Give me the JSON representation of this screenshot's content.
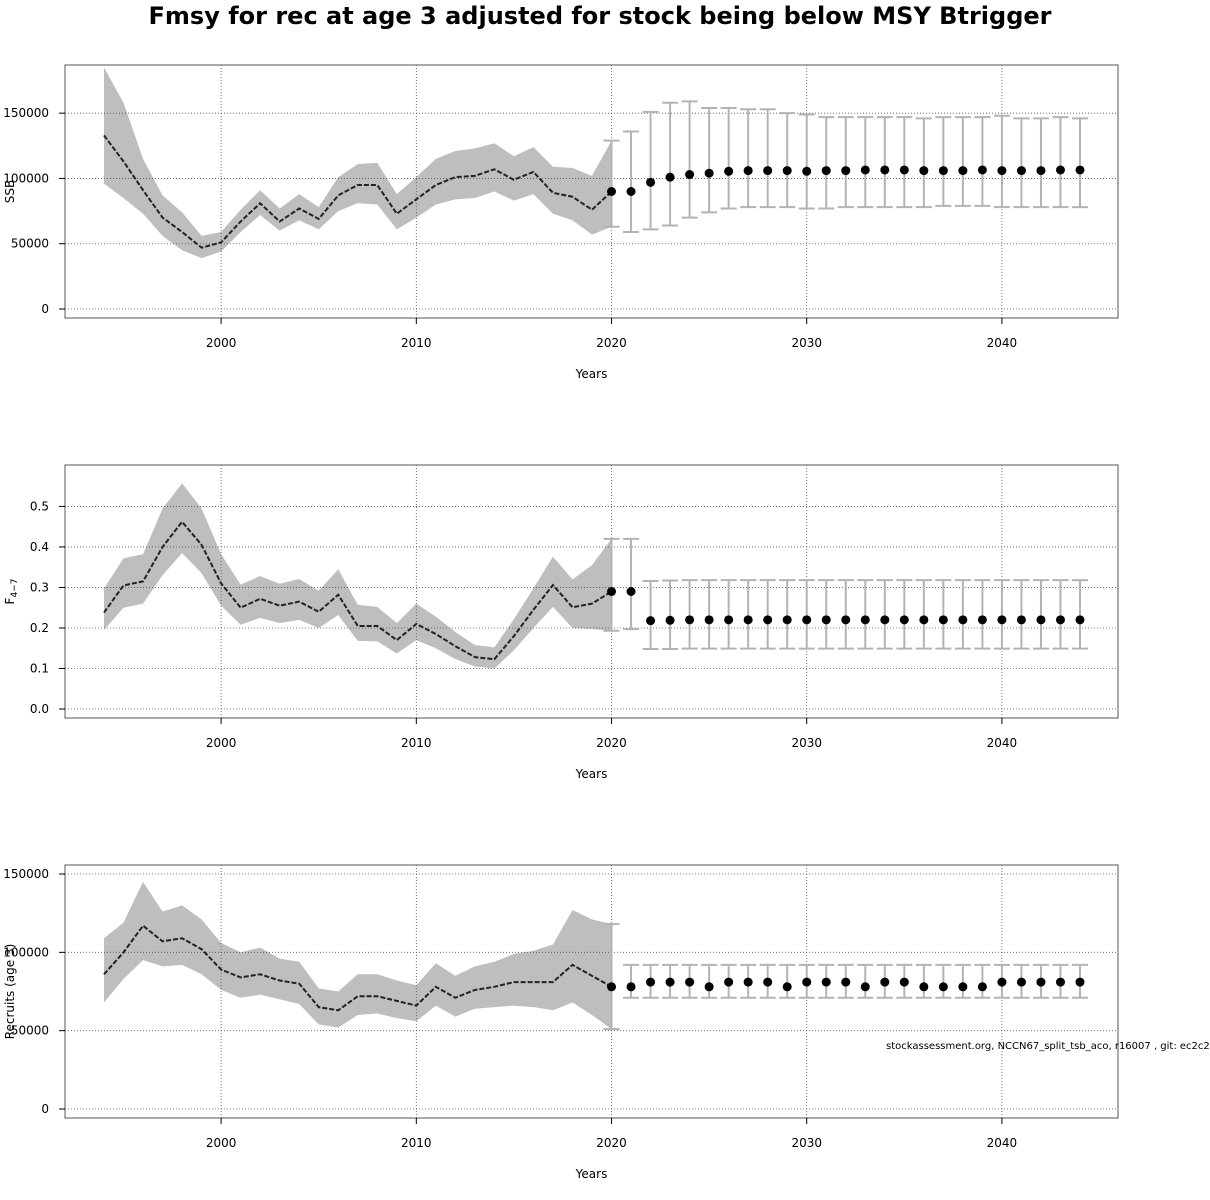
{
  "title": "Fmsy for rec at age 3 adjusted for stock being below MSY Btrigger",
  "footer": "stockassessment.org, NCCN67_split_tsb_aco, r16007 , git: ec2c2",
  "colors": {
    "band": "#bebebe",
    "errorbar": "#b3b3b3",
    "line": "#222222",
    "point": "#000000",
    "grid": "#555555"
  },
  "chart_data": [
    {
      "type": "line",
      "xlabel": "Years",
      "ylabel": "SSB",
      "xlim": [
        1994,
        2044
      ],
      "ylim": [
        0,
        180000
      ],
      "xticks": [
        "2000",
        "2010",
        "2020",
        "2030",
        "2040"
      ],
      "yticks": [
        "0",
        "50000",
        "100000",
        "150000"
      ],
      "historical": {
        "years": [
          1994,
          1995,
          1996,
          1997,
          1998,
          1999,
          2000,
          2001,
          2002,
          2003,
          2004,
          2005,
          2006,
          2007,
          2008,
          2009,
          2010,
          2011,
          2012,
          2013,
          2014,
          2015,
          2016,
          2017,
          2018,
          2019,
          2020
        ],
        "estimate": [
          133000,
          113000,
          91000,
          70000,
          59000,
          47000,
          51000,
          67000,
          81000,
          67000,
          77000,
          69000,
          87000,
          95000,
          95000,
          73000,
          84000,
          95000,
          101000,
          102000,
          107000,
          99000,
          105000,
          89000,
          86000,
          76000,
          90000
        ],
        "lower": [
          96000,
          85000,
          73000,
          56000,
          45000,
          39000,
          44000,
          59000,
          72000,
          60000,
          68000,
          61000,
          75000,
          81000,
          80000,
          61000,
          70000,
          80000,
          84000,
          85000,
          90000,
          83000,
          88000,
          73000,
          68000,
          57000,
          63000
        ],
        "upper": [
          185000,
          158000,
          115000,
          87000,
          74000,
          56000,
          59000,
          76000,
          91000,
          77000,
          88000,
          78000,
          101000,
          111000,
          112000,
          88000,
          101000,
          115000,
          121000,
          123000,
          127000,
          117000,
          124000,
          109000,
          108000,
          102000,
          129000
        ]
      },
      "forecast": {
        "years": [
          2020,
          2021,
          2022,
          2023,
          2024,
          2025,
          2026,
          2027,
          2028,
          2029,
          2030,
          2031,
          2032,
          2033,
          2034,
          2035,
          2036,
          2037,
          2038,
          2039,
          2040,
          2041,
          2042,
          2043,
          2044
        ],
        "median": [
          90000,
          90000,
          97000,
          101000,
          103000,
          104000,
          105500,
          106000,
          106000,
          106000,
          105500,
          106000,
          106000,
          106500,
          106500,
          106500,
          106000,
          106000,
          106000,
          106500,
          106000,
          106000,
          106000,
          106500,
          106500
        ],
        "lower": [
          63000,
          59000,
          61000,
          64000,
          70000,
          74000,
          77000,
          78000,
          78000,
          78000,
          77000,
          77000,
          78000,
          78000,
          78000,
          78000,
          78000,
          79000,
          79000,
          79000,
          78000,
          78000,
          78000,
          78000,
          78000
        ],
        "upper": [
          129000,
          136000,
          151000,
          158000,
          159000,
          154000,
          154000,
          153000,
          153000,
          150000,
          149000,
          147000,
          147000,
          147000,
          147000,
          147000,
          146000,
          147000,
          147000,
          147000,
          148000,
          146000,
          146000,
          147000,
          146000
        ]
      }
    },
    {
      "type": "line",
      "xlabel": "Years",
      "ylabel": "F",
      "ylabel_sub": "4−7",
      "xlim": [
        1994,
        2044
      ],
      "ylim": [
        0,
        0.58
      ],
      "xticks": [
        "2000",
        "2010",
        "2020",
        "2030",
        "2040"
      ],
      "yticks": [
        "0.0",
        "0.1",
        "0.2",
        "0.3",
        "0.4",
        "0.5"
      ],
      "historical": {
        "years": [
          1994,
          1995,
          1996,
          1997,
          1998,
          1999,
          2000,
          2001,
          2002,
          2003,
          2004,
          2005,
          2006,
          2007,
          2008,
          2009,
          2010,
          2011,
          2012,
          2013,
          2014,
          2015,
          2016,
          2017,
          2018,
          2019,
          2020
        ],
        "estimate": [
          0.238,
          0.305,
          0.315,
          0.4,
          0.462,
          0.405,
          0.31,
          0.25,
          0.272,
          0.255,
          0.265,
          0.24,
          0.282,
          0.205,
          0.205,
          0.17,
          0.21,
          0.185,
          0.155,
          0.128,
          0.123,
          0.18,
          0.245,
          0.306,
          0.251,
          0.26,
          0.29
        ],
        "lower": [
          0.195,
          0.25,
          0.26,
          0.33,
          0.385,
          0.335,
          0.255,
          0.208,
          0.225,
          0.212,
          0.22,
          0.2,
          0.232,
          0.168,
          0.167,
          0.137,
          0.17,
          0.15,
          0.123,
          0.105,
          0.1,
          0.145,
          0.2,
          0.252,
          0.2,
          0.197,
          0.193
        ],
        "upper": [
          0.297,
          0.372,
          0.382,
          0.495,
          0.557,
          0.495,
          0.382,
          0.307,
          0.328,
          0.309,
          0.321,
          0.292,
          0.345,
          0.257,
          0.252,
          0.212,
          0.26,
          0.228,
          0.19,
          0.158,
          0.152,
          0.222,
          0.298,
          0.376,
          0.32,
          0.355,
          0.42
        ]
      },
      "forecast": {
        "years": [
          2020,
          2021,
          2022,
          2023,
          2024,
          2025,
          2026,
          2027,
          2028,
          2029,
          2030,
          2031,
          2032,
          2033,
          2034,
          2035,
          2036,
          2037,
          2038,
          2039,
          2040,
          2041,
          2042,
          2043,
          2044
        ],
        "median": [
          0.29,
          0.29,
          0.218,
          0.219,
          0.22,
          0.22,
          0.22,
          0.22,
          0.22,
          0.22,
          0.22,
          0.22,
          0.22,
          0.22,
          0.22,
          0.22,
          0.22,
          0.22,
          0.22,
          0.22,
          0.22,
          0.22,
          0.22,
          0.22,
          0.22
        ],
        "lower": [
          0.193,
          0.197,
          0.148,
          0.148,
          0.149,
          0.149,
          0.149,
          0.149,
          0.149,
          0.149,
          0.149,
          0.149,
          0.149,
          0.149,
          0.149,
          0.149,
          0.149,
          0.149,
          0.149,
          0.149,
          0.149,
          0.149,
          0.149,
          0.149,
          0.149
        ],
        "upper": [
          0.42,
          0.42,
          0.316,
          0.317,
          0.318,
          0.318,
          0.318,
          0.318,
          0.318,
          0.318,
          0.318,
          0.318,
          0.318,
          0.318,
          0.318,
          0.318,
          0.318,
          0.318,
          0.318,
          0.318,
          0.318,
          0.318,
          0.318,
          0.318,
          0.318
        ]
      }
    },
    {
      "type": "line",
      "xlabel": "Years",
      "ylabel": "Recruits (age 3)",
      "xlim": [
        1994,
        2044
      ],
      "ylim": [
        0,
        150000
      ],
      "xticks": [
        "2000",
        "2010",
        "2020",
        "2030",
        "2040"
      ],
      "yticks": [
        "0",
        "50000",
        "100000",
        "150000"
      ],
      "historical": {
        "years": [
          1994,
          1995,
          1996,
          1997,
          1998,
          1999,
          2000,
          2001,
          2002,
          2003,
          2004,
          2005,
          2006,
          2007,
          2008,
          2009,
          2010,
          2011,
          2012,
          2013,
          2014,
          2015,
          2016,
          2017,
          2018,
          2019,
          2020
        ],
        "estimate": [
          86000,
          100000,
          117000,
          107000,
          109000,
          102000,
          89000,
          84000,
          86000,
          82000,
          80000,
          65000,
          63000,
          72000,
          72000,
          69000,
          66000,
          78000,
          71000,
          76000,
          78000,
          81000,
          81000,
          81000,
          92000,
          85000,
          78000
        ],
        "lower": [
          68000,
          83000,
          95000,
          91000,
          92000,
          86000,
          76000,
          71000,
          73000,
          70000,
          67000,
          54000,
          52000,
          60000,
          61000,
          58000,
          56000,
          66000,
          59000,
          64000,
          65000,
          66000,
          65000,
          63000,
          68000,
          60000,
          51000
        ],
        "upper": [
          109000,
          119000,
          145000,
          126000,
          130000,
          121000,
          106000,
          100000,
          103000,
          96000,
          94000,
          77000,
          75000,
          86000,
          86000,
          82000,
          79000,
          93000,
          85000,
          91000,
          94000,
          99000,
          101000,
          105000,
          127000,
          121000,
          118000
        ]
      },
      "forecast": {
        "years": [
          2020,
          2021,
          2022,
          2023,
          2024,
          2025,
          2026,
          2027,
          2028,
          2029,
          2030,
          2031,
          2032,
          2033,
          2034,
          2035,
          2036,
          2037,
          2038,
          2039,
          2040,
          2041,
          2042,
          2043,
          2044
        ],
        "median": [
          78000,
          78000,
          81000,
          81000,
          81000,
          78000,
          81000,
          81000,
          81000,
          78000,
          81000,
          81000,
          81000,
          78000,
          81000,
          81000,
          78000,
          78000,
          78000,
          78000,
          81000,
          81000,
          81000,
          81000,
          81000
        ],
        "lower": [
          51000,
          71000,
          71000,
          71000,
          71000,
          71000,
          71000,
          71000,
          71000,
          71000,
          71000,
          71000,
          71000,
          71000,
          71000,
          71000,
          71000,
          71000,
          71000,
          71000,
          71000,
          71000,
          71000,
          71000,
          71000
        ],
        "upper": [
          118000,
          92000,
          92000,
          92000,
          92000,
          92000,
          92000,
          92000,
          92000,
          92000,
          92000,
          92000,
          92000,
          92000,
          92000,
          92000,
          92000,
          92000,
          92000,
          92000,
          92000,
          92000,
          92000,
          92000,
          92000
        ]
      }
    }
  ]
}
